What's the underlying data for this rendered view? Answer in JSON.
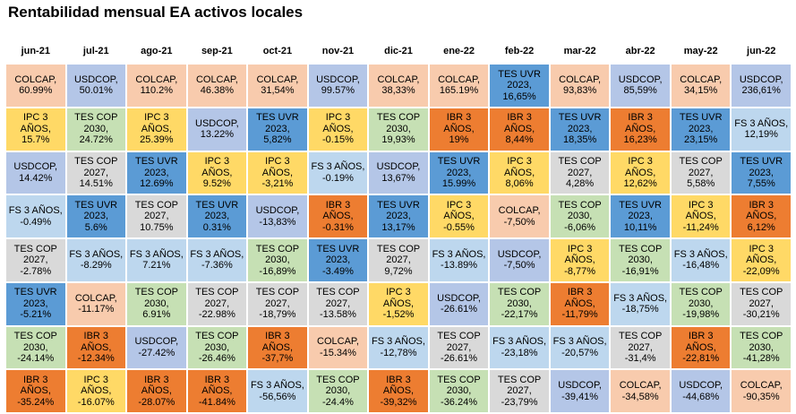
{
  "title": "Rentabilidad mensual EA activos locales",
  "chart_data": {
    "type": "table",
    "title": "Rentabilidad mensual EA activos locales",
    "columns": [
      "jun-21",
      "jul-21",
      "ago-21",
      "sep-21",
      "oct-21",
      "nov-21",
      "dic-21",
      "ene-22",
      "feb-22",
      "mar-22",
      "abr-22",
      "may-22",
      "jun-22"
    ],
    "colors": {
      "COLCAP": "#f8cbad",
      "USDCOP": "#b4c6e7",
      "IPC 3 AÑOS": "#ffd966",
      "TES COP 2030": "#c6e0b4",
      "TES COP 2027": "#d9d9d9",
      "TES UVR 2023": "#5b9bd5",
      "FS 3 AÑOS": "#bdd7ee",
      "IBR 3 AÑOS": "#ed7d31"
    },
    "cells": [
      [
        {
          "asset": "COLCAP",
          "label": "COLCAP,\n60.99%",
          "value": 60.99
        },
        {
          "asset": "IPC 3 AÑOS",
          "label": "IPC 3 AÑOS,\n15.7%",
          "value": 15.7
        },
        {
          "asset": "USDCOP",
          "label": "USDCOP,\n14.42%",
          "value": 14.42
        },
        {
          "asset": "FS 3 AÑOS",
          "label": "FS 3 AÑOS,\n-0.49%",
          "value": -0.49
        },
        {
          "asset": "TES COP 2027",
          "label": "TES COP\n2027,\n-2.78%",
          "value": -2.78
        },
        {
          "asset": "TES UVR 2023",
          "label": "TES UVR\n2023,\n-5.21%",
          "value": -5.21
        },
        {
          "asset": "TES COP 2030",
          "label": "TES COP\n2030,\n-24.14%",
          "value": -24.14
        },
        {
          "asset": "IBR 3 AÑOS",
          "label": "IBR 3 AÑOS,\n-35.24%",
          "value": -35.24
        }
      ],
      [
        {
          "asset": "USDCOP",
          "label": "USDCOP,\n50.01%",
          "value": 50.01
        },
        {
          "asset": "TES COP 2030",
          "label": "TES COP\n2030,\n24.72%",
          "value": 24.72
        },
        {
          "asset": "TES COP 2027",
          "label": "TES COP\n2027,\n14.51%",
          "value": 14.51
        },
        {
          "asset": "TES UVR 2023",
          "label": "TES UVR\n2023,\n5.6%",
          "value": 5.6
        },
        {
          "asset": "FS 3 AÑOS",
          "label": "FS 3 AÑOS,\n-8.29%",
          "value": -8.29
        },
        {
          "asset": "COLCAP",
          "label": "COLCAP,\n-11.17%",
          "value": -11.17
        },
        {
          "asset": "IBR 3 AÑOS",
          "label": "IBR 3 AÑOS,\n-12.34%",
          "value": -12.34
        },
        {
          "asset": "IPC 3 AÑOS",
          "label": "IPC 3 AÑOS,\n-16.07%",
          "value": -16.07
        }
      ],
      [
        {
          "asset": "COLCAP",
          "label": "COLCAP,\n110.2%",
          "value": 110.2
        },
        {
          "asset": "IPC 3 AÑOS",
          "label": "IPC 3 AÑOS,\n25.39%",
          "value": 25.39
        },
        {
          "asset": "TES UVR 2023",
          "label": "TES UVR\n2023,\n12.69%",
          "value": 12.69
        },
        {
          "asset": "TES COP 2027",
          "label": "TES COP\n2027,\n10.75%",
          "value": 10.75
        },
        {
          "asset": "FS 3 AÑOS",
          "label": "FS 3 AÑOS,\n7.21%",
          "value": 7.21
        },
        {
          "asset": "TES COP 2030",
          "label": "TES COP\n2030,\n6.91%",
          "value": 6.91
        },
        {
          "asset": "USDCOP",
          "label": "USDCOP,\n-27.42%",
          "value": -27.42
        },
        {
          "asset": "IBR 3 AÑOS",
          "label": "IBR 3 AÑOS,\n-28.07%",
          "value": -28.07
        }
      ],
      [
        {
          "asset": "COLCAP",
          "label": "COLCAP,\n46.38%",
          "value": 46.38
        },
        {
          "asset": "USDCOP",
          "label": "USDCOP,\n13.22%",
          "value": 13.22
        },
        {
          "asset": "IPC 3 AÑOS",
          "label": "IPC 3 AÑOS,\n9.52%",
          "value": 9.52
        },
        {
          "asset": "TES UVR 2023",
          "label": "TES UVR\n2023,\n0.31%",
          "value": 0.31
        },
        {
          "asset": "FS 3 AÑOS",
          "label": "FS 3 AÑOS,\n-7.36%",
          "value": -7.36
        },
        {
          "asset": "TES COP 2027",
          "label": "TES COP\n2027,\n-22.98%",
          "value": -22.98
        },
        {
          "asset": "TES COP 2030",
          "label": "TES COP\n2030,\n-26.46%",
          "value": -26.46
        },
        {
          "asset": "IBR 3 AÑOS",
          "label": "IBR 3 AÑOS,\n-41.84%",
          "value": -41.84
        }
      ],
      [
        {
          "asset": "COLCAP",
          "label": "COLCAP,\n31,54%",
          "value": 31.54
        },
        {
          "asset": "TES UVR 2023",
          "label": "TES UVR\n2023,\n5,82%",
          "value": 5.82
        },
        {
          "asset": "IPC 3 AÑOS",
          "label": "IPC 3 AÑOS,\n-3,21%",
          "value": -3.21
        },
        {
          "asset": "USDCOP",
          "label": "USDCOP,\n-13,83%",
          "value": -13.83
        },
        {
          "asset": "TES COP 2030",
          "label": "TES COP\n2030,\n-16,89%",
          "value": -16.89
        },
        {
          "asset": "TES COP 2027",
          "label": "TES COP\n2027,\n-18,79%",
          "value": -18.79
        },
        {
          "asset": "IBR 3 AÑOS",
          "label": "IBR 3 AÑOS,\n-37,7%",
          "value": -37.7
        },
        {
          "asset": "FS 3 AÑOS",
          "label": "FS 3 AÑOS,\n-56,56%",
          "value": -56.56
        }
      ],
      [
        {
          "asset": "USDCOP",
          "label": "USDCOP,\n99.57%",
          "value": 99.57
        },
        {
          "asset": "IPC 3 AÑOS",
          "label": "IPC 3 AÑOS,\n-0.15%",
          "value": -0.15
        },
        {
          "asset": "FS 3 AÑOS",
          "label": "FS 3 AÑOS,\n-0.19%",
          "value": -0.19
        },
        {
          "asset": "IBR 3 AÑOS",
          "label": "IBR 3 AÑOS,\n-0.31%",
          "value": -0.31
        },
        {
          "asset": "TES UVR 2023",
          "label": "TES UVR\n2023,\n-3.49%",
          "value": -3.49
        },
        {
          "asset": "TES COP 2027",
          "label": "TES COP\n2027,\n-13.58%",
          "value": -13.58
        },
        {
          "asset": "COLCAP",
          "label": "COLCAP,\n-15.34%",
          "value": -15.34
        },
        {
          "asset": "TES COP 2030",
          "label": "TES COP\n2030,\n-24.4%",
          "value": -24.4
        }
      ],
      [
        {
          "asset": "COLCAP",
          "label": "COLCAP,\n38,33%",
          "value": 38.33
        },
        {
          "asset": "TES COP 2030",
          "label": "TES COP\n2030,\n19,93%",
          "value": 19.93
        },
        {
          "asset": "USDCOP",
          "label": "USDCOP,\n13,67%",
          "value": 13.67
        },
        {
          "asset": "TES UVR 2023",
          "label": "TES UVR\n2023,\n13,17%",
          "value": 13.17
        },
        {
          "asset": "TES COP 2027",
          "label": "TES COP\n2027,\n9,72%",
          "value": 9.72
        },
        {
          "asset": "IPC 3 AÑOS",
          "label": "IPC 3 AÑOS,\n-1,52%",
          "value": -1.52
        },
        {
          "asset": "FS 3 AÑOS",
          "label": "FS 3 AÑOS,\n-12,78%",
          "value": -12.78
        },
        {
          "asset": "IBR 3 AÑOS",
          "label": "IBR 3 AÑOS,\n-39,32%",
          "value": -39.32
        }
      ],
      [
        {
          "asset": "COLCAP",
          "label": "COLCAP,\n165.19%",
          "value": 165.19
        },
        {
          "asset": "IBR 3 AÑOS",
          "label": "IBR 3 AÑOS,\n19%",
          "value": 19
        },
        {
          "asset": "TES UVR 2023",
          "label": "TES UVR\n2023,\n15.99%",
          "value": 15.99
        },
        {
          "asset": "IPC 3 AÑOS",
          "label": "IPC 3 AÑOS,\n-0.55%",
          "value": -0.55
        },
        {
          "asset": "FS 3 AÑOS",
          "label": "FS 3 AÑOS,\n-13.89%",
          "value": -13.89
        },
        {
          "asset": "USDCOP",
          "label": "USDCOP,\n-26.61%",
          "value": -26.61
        },
        {
          "asset": "TES COP 2027",
          "label": "TES COP\n2027,\n-26.61%",
          "value": -26.61
        },
        {
          "asset": "TES COP 2030",
          "label": "TES COP\n2030,\n-36.24%",
          "value": -36.24
        }
      ],
      [
        {
          "asset": "TES UVR 2023",
          "label": "TES UVR\n2023,\n16,65%",
          "value": 16.65
        },
        {
          "asset": "IBR 3 AÑOS",
          "label": "IBR 3 AÑOS,\n8,44%",
          "value": 8.44
        },
        {
          "asset": "IPC 3 AÑOS",
          "label": "IPC 3 AÑOS,\n8,06%",
          "value": 8.06
        },
        {
          "asset": "COLCAP",
          "label": "COLCAP,\n-7,50%",
          "value": -7.5
        },
        {
          "asset": "USDCOP",
          "label": "USDCOP,\n-7,50%",
          "value": -7.5
        },
        {
          "asset": "TES COP 2030",
          "label": "TES COP\n2030,\n-22,17%",
          "value": -22.17
        },
        {
          "asset": "FS 3 AÑOS",
          "label": "FS 3 AÑOS,\n-23,18%",
          "value": -23.18
        },
        {
          "asset": "TES COP 2027",
          "label": "TES COP\n2027,\n-23,79%",
          "value": -23.79
        }
      ],
      [
        {
          "asset": "COLCAP",
          "label": "COLCAP,\n93,83%",
          "value": 93.83
        },
        {
          "asset": "TES UVR 2023",
          "label": "TES UVR\n2023,\n18,35%",
          "value": 18.35
        },
        {
          "asset": "TES COP 2027",
          "label": "TES COP\n2027,\n4,28%",
          "value": 4.28
        },
        {
          "asset": "TES COP 2030",
          "label": "TES COP\n2030,\n-6,06%",
          "value": -6.06
        },
        {
          "asset": "IPC 3 AÑOS",
          "label": "IPC 3 AÑOS,\n-8,77%",
          "value": -8.77
        },
        {
          "asset": "IBR 3 AÑOS",
          "label": "IBR 3 AÑOS,\n-11,79%",
          "value": -11.79
        },
        {
          "asset": "FS 3 AÑOS",
          "label": "FS 3 AÑOS,\n-20,57%",
          "value": -20.57
        },
        {
          "asset": "USDCOP",
          "label": "USDCOP,\n-39,41%",
          "value": -39.41
        }
      ],
      [
        {
          "asset": "USDCOP",
          "label": "USDCOP,\n85,59%",
          "value": 85.59
        },
        {
          "asset": "IBR 3 AÑOS",
          "label": "IBR 3 AÑOS,\n16,23%",
          "value": 16.23
        },
        {
          "asset": "IPC 3 AÑOS",
          "label": "IPC 3 AÑOS,\n12,62%",
          "value": 12.62
        },
        {
          "asset": "TES UVR 2023",
          "label": "TES UVR\n2023,\n10,11%",
          "value": 10.11
        },
        {
          "asset": "TES COP 2030",
          "label": "TES COP\n2030,\n-16,91%",
          "value": -16.91
        },
        {
          "asset": "FS 3 AÑOS",
          "label": "FS 3 AÑOS,\n-18,75%",
          "value": -18.75
        },
        {
          "asset": "TES COP 2027",
          "label": "TES COP\n2027,\n-31,4%",
          "value": -31.4
        },
        {
          "asset": "COLCAP",
          "label": "COLCAP,\n-34,58%",
          "value": -34.58
        }
      ],
      [
        {
          "asset": "COLCAP",
          "label": "COLCAP,\n34,15%",
          "value": 34.15
        },
        {
          "asset": "TES UVR 2023",
          "label": "TES UVR\n2023,\n23,15%",
          "value": 23.15
        },
        {
          "asset": "TES COP 2027",
          "label": "TES COP\n2027,\n5,58%",
          "value": 5.58
        },
        {
          "asset": "IPC 3 AÑOS",
          "label": "IPC 3 AÑOS,\n-11,24%",
          "value": -11.24
        },
        {
          "asset": "FS 3 AÑOS",
          "label": "FS 3 AÑOS,\n-16,48%",
          "value": -16.48
        },
        {
          "asset": "TES COP 2030",
          "label": "TES COP\n2030,\n-19,98%",
          "value": -19.98
        },
        {
          "asset": "IBR 3 AÑOS",
          "label": "IBR 3 AÑOS,\n-22,81%",
          "value": -22.81
        },
        {
          "asset": "USDCOP",
          "label": "USDCOP,\n-44,68%",
          "value": -44.68
        }
      ],
      [
        {
          "asset": "USDCOP",
          "label": "USDCOP,\n236,61%",
          "value": 236.61
        },
        {
          "asset": "FS 3 AÑOS",
          "label": "FS 3 AÑOS,\n12,19%",
          "value": 12.19
        },
        {
          "asset": "TES UVR 2023",
          "label": "TES UVR\n2023,\n7,55%",
          "value": 7.55
        },
        {
          "asset": "IBR 3 AÑOS",
          "label": "IBR 3 AÑOS,\n6,12%",
          "value": 6.12
        },
        {
          "asset": "IPC 3 AÑOS",
          "label": "IPC 3 AÑOS,\n-22,09%",
          "value": -22.09
        },
        {
          "asset": "TES COP 2027",
          "label": "TES COP\n2027,\n-30,21%",
          "value": -30.21
        },
        {
          "asset": "TES COP 2030",
          "label": "TES COP\n2030,\n-41,28%",
          "value": -41.28
        },
        {
          "asset": "COLCAP",
          "label": "COLCAP,\n-90,35%",
          "value": -90.35
        }
      ]
    ]
  }
}
